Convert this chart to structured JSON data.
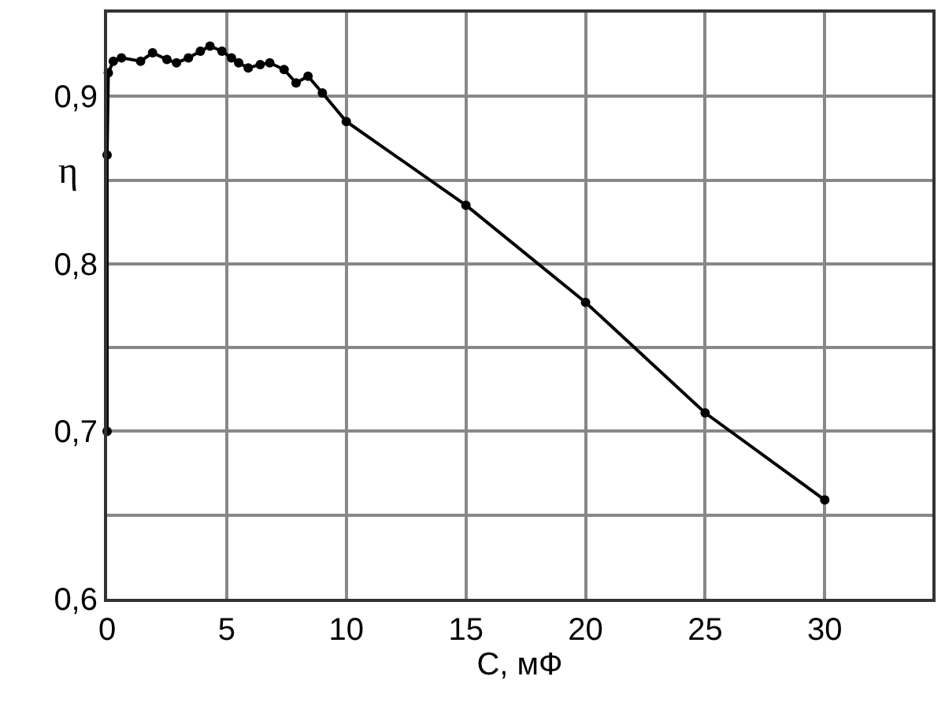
{
  "chart_data": {
    "type": "line",
    "xlabel": "C, мФ",
    "ylabel": "η",
    "x": [
      0,
      0,
      0.05,
      0.26,
      0.6,
      1.4,
      1.9,
      2.5,
      2.9,
      3.4,
      3.9,
      4.3,
      4.8,
      5.2,
      5.5,
      5.9,
      6.4,
      6.8,
      7.4,
      7.9,
      8.4,
      9.0,
      10,
      15,
      20,
      25,
      30
    ],
    "series": [
      {
        "color": "#000000",
        "values": [
          0.7,
          0.865,
          0.914,
          0.921,
          0.923,
          0.921,
          0.926,
          0.922,
          0.92,
          0.923,
          0.927,
          0.93,
          0.927,
          0.923,
          0.92,
          0.917,
          0.919,
          0.92,
          0.916,
          0.908,
          0.912,
          0.902,
          0.885,
          0.835,
          0.777,
          0.711,
          0.659
        ]
      }
    ],
    "xlim": [
      0,
      34.5
    ],
    "ylim": [
      0.6,
      0.95
    ],
    "xticks": [
      0,
      5,
      10,
      15,
      20,
      25,
      30
    ],
    "yticks": [
      {
        "value": 0.6,
        "label": "0,6"
      },
      {
        "value": 0.65,
        "label": null
      },
      {
        "value": 0.7,
        "label": "0,7"
      },
      {
        "value": 0.75,
        "label": null
      },
      {
        "value": 0.8,
        "label": "0,8"
      },
      {
        "value": 0.85,
        "label": null
      },
      {
        "value": 0.9,
        "label": "0,9"
      }
    ],
    "grid": true,
    "marker": "circle",
    "line_style": "solid"
  }
}
